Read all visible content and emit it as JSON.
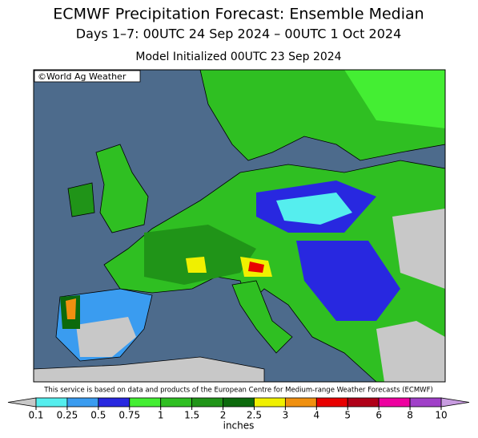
{
  "title": "ECMWF Precipitation Forecast: Ensemble Median",
  "subtitle": "Days 1–7: 00UTC 24 Sep 2024 – 00UTC 1 Oct 2024",
  "initialized": "Model Initialized 00UTC 23 Sep 2024",
  "credit": "©World Ag Weather",
  "service_note": "This service is based on data and products of the European Centre for Medium-range Weather Forecasts (ECMWF)",
  "colorbar": {
    "ticks": [
      0.1,
      0.25,
      0.5,
      0.75,
      1,
      1.5,
      2,
      2.5,
      3,
      4,
      5,
      6,
      8,
      10
    ],
    "colors": [
      "#55eeee",
      "#3a9cf0",
      "#2828e0",
      "#44ee33",
      "#2fbf22",
      "#209418",
      "#0c6a0c",
      "#f0f000",
      "#f09010",
      "#e80000",
      "#b00018",
      "#ee00a0",
      "#a040c8"
    ],
    "under_color": "#c8c8c8",
    "over_color": "#c89ce0",
    "unit": "inches"
  }
}
